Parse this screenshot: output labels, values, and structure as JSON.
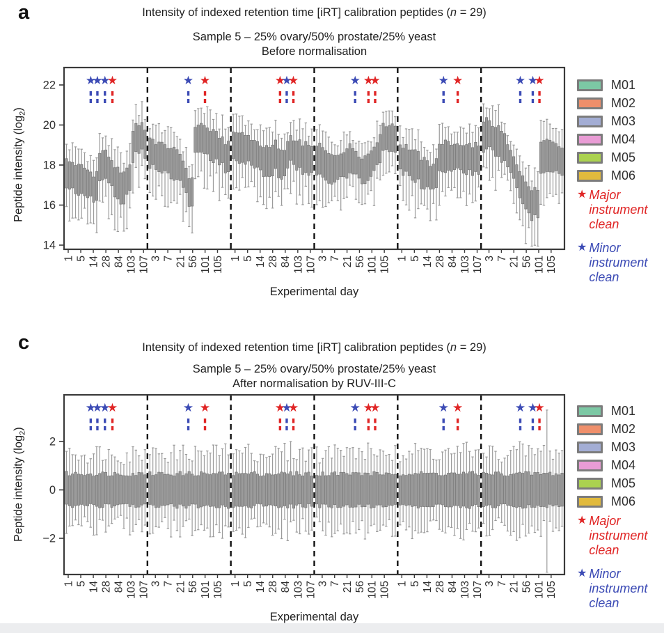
{
  "page": {
    "background": "#ffffff",
    "footer_strip_color": "#ecedef"
  },
  "colors": {
    "major_clean_red": "#e02525",
    "minor_clean_blue": "#3c4bb5",
    "box_fill": "#9b9b9b",
    "box_stroke": "#757575",
    "frame": "#3a3a3a",
    "separator": "#111111",
    "text": "#2f2f2f"
  },
  "legend": {
    "machines": [
      {
        "id": "M01",
        "color": "#7cc8a4"
      },
      {
        "id": "M02",
        "color": "#ef8f6b"
      },
      {
        "id": "M03",
        "color": "#a3add4"
      },
      {
        "id": "M04",
        "color": "#e99cd5"
      },
      {
        "id": "M05",
        "color": "#abd250"
      },
      {
        "id": "M06",
        "color": "#e1ba3d"
      }
    ],
    "major_star": "★",
    "minor_star": "★",
    "major_lines": [
      "Major",
      "instrument",
      "clean"
    ],
    "minor_lines": [
      "Minor",
      "instrument",
      "clean"
    ]
  },
  "panels": [
    {
      "letter": "a",
      "title_prefix": "Intensity of indexed retention time [iRT] calibration peptides (",
      "title_n": "n",
      "title_suffix": " = 29)",
      "subtitle": "Sample 5 – 25% ovary/50% prostate/25% yeast",
      "subtitle2": "Before normalisation",
      "ylabel_main": "Peptide intensity (log",
      "ylabel_sub": "2",
      "ylabel_end": ")",
      "xlabel": "Experimental day"
    },
    {
      "letter": "c",
      "title_prefix": "Intensity of indexed retention time [iRT] calibration peptides (",
      "title_n": "n",
      "title_suffix": " = 29)",
      "subtitle": "Sample 5 – 25% ovary/50% prostate/25% yeast",
      "subtitle2": "After normalisation by RUV-III-C",
      "ylabel_main": "Peptide intensity (log",
      "ylabel_sub": "2",
      "ylabel_end": ")",
      "xlabel": "Experimental day"
    }
  ],
  "chart_data": [
    {
      "type": "boxplot",
      "panel": "a",
      "title": "Intensity of indexed retention time [iRT] calibration peptides (n = 29)",
      "subtitle": "Sample 5 – 25% ovary/50% prostate/25% yeast",
      "condition": "Before normalisation",
      "ylabel": "Peptide intensity (log2)",
      "xlabel": "Experimental day",
      "ylim": [
        13.8,
        22.9
      ],
      "yticks": [
        {
          "label": "22",
          "value": 22
        },
        {
          "label": "20",
          "value": 20
        },
        {
          "label": "18",
          "value": 18
        },
        {
          "label": "16",
          "value": 16
        },
        {
          "label": "14",
          "value": 14
        }
      ],
      "xticks_odd_sections": [
        "1",
        "5",
        "14",
        "28",
        "84",
        "103",
        "107"
      ],
      "xticks_even_sections": [
        "3",
        "7",
        "21",
        "56",
        "101",
        "105"
      ],
      "boxes_per_section": 27,
      "iqr_halfwidth_approx": 0.6,
      "whisker_extent_approx": 1.6,
      "grid": false,
      "legend_position": "right",
      "sections": [
        {
          "machine": "M01",
          "medians": [
            17.6,
            17.5,
            17.5,
            17.4,
            17.3,
            17.3,
            17.2,
            17.1,
            17.0,
            16.9,
            17.0,
            17.9,
            18.1,
            18.0,
            17.8,
            17.6,
            17.3,
            17.1,
            16.9,
            16.9,
            17.1,
            17.5,
            19.0,
            19.3,
            19.4,
            19.4,
            19.2
          ],
          "clean_events": [
            {
              "type": "minor",
              "pos": 0.32
            },
            {
              "type": "minor",
              "pos": 0.4
            },
            {
              "type": "minor",
              "pos": 0.49
            },
            {
              "type": "major",
              "pos": 0.58
            }
          ]
        },
        {
          "machine": "M02",
          "medians": [
            18.6,
            18.6,
            18.5,
            18.5,
            18.4,
            18.3,
            18.3,
            18.2,
            18.1,
            18.0,
            17.9,
            17.6,
            17.2,
            16.8,
            16.6,
            19.3,
            19.4,
            19.4,
            19.3,
            19.2,
            19.1,
            19.0,
            18.9,
            18.8,
            18.7,
            18.5,
            18.4
          ],
          "clean_events": [
            {
              "type": "minor",
              "pos": 0.49
            },
            {
              "type": "major",
              "pos": 0.69
            }
          ]
        },
        {
          "machine": "M03",
          "medians": [
            19.0,
            19.0,
            18.9,
            18.9,
            18.8,
            18.8,
            18.7,
            18.6,
            18.5,
            18.4,
            18.3,
            18.2,
            18.2,
            18.3,
            18.5,
            18.2,
            18.0,
            18.1,
            18.6,
            18.8,
            18.7,
            18.6,
            18.5,
            18.4,
            18.4,
            18.3,
            18.2
          ],
          "clean_events": [
            {
              "type": "major",
              "pos": 0.59
            },
            {
              "type": "minor",
              "pos": 0.67
            },
            {
              "type": "major",
              "pos": 0.75
            }
          ]
        },
        {
          "machine": "M04",
          "medians": [
            18.4,
            18.3,
            18.2,
            18.0,
            17.9,
            17.8,
            17.8,
            17.9,
            18.0,
            18.1,
            18.2,
            18.3,
            18.2,
            18.1,
            17.9,
            17.8,
            17.8,
            17.9,
            18.1,
            18.3,
            18.6,
            19.0,
            19.3,
            19.4,
            19.4,
            19.4,
            19.3
          ],
          "clean_events": [
            {
              "type": "minor",
              "pos": 0.49
            },
            {
              "type": "major",
              "pos": 0.65
            },
            {
              "type": "major",
              "pos": 0.73
            }
          ]
        },
        {
          "machine": "M05",
          "medians": [
            18.4,
            18.3,
            18.3,
            18.2,
            18.1,
            18.0,
            17.9,
            17.7,
            17.6,
            17.5,
            17.4,
            17.5,
            17.7,
            18.3,
            18.5,
            18.5,
            18.4,
            18.4,
            18.4,
            18.5,
            18.4,
            18.4,
            18.3,
            18.4,
            18.3,
            18.4,
            18.3
          ],
          "clean_events": [
            {
              "type": "minor",
              "pos": 0.55
            },
            {
              "type": "major",
              "pos": 0.72
            }
          ]
        },
        {
          "machine": "M06",
          "medians": [
            19.5,
            19.6,
            19.5,
            19.4,
            19.3,
            19.2,
            19.0,
            18.8,
            18.5,
            18.2,
            17.9,
            17.5,
            17.1,
            16.8,
            16.5,
            16.3,
            16.1,
            16.1,
            16.2,
            18.4,
            18.5,
            18.5,
            18.5,
            18.4,
            18.4,
            18.3,
            18.2
          ],
          "clean_events": [
            {
              "type": "minor",
              "pos": 0.47
            },
            {
              "type": "minor",
              "pos": 0.62
            },
            {
              "type": "major",
              "pos": 0.7
            }
          ]
        }
      ]
    },
    {
      "type": "boxplot",
      "panel": "c",
      "title": "Intensity of indexed retention time [iRT] calibration peptides (n = 29)",
      "subtitle": "Sample 5 – 25% ovary/50% prostate/25% yeast",
      "condition": "After normalisation by RUV-III-C",
      "ylabel": "Peptide intensity (log2)",
      "xlabel": "Experimental day",
      "ylim": [
        -3.5,
        3.9
      ],
      "yticks": [
        {
          "label": "2",
          "value": 2
        },
        {
          "label": "0",
          "value": 0
        },
        {
          "label": "−2",
          "value": -2
        }
      ],
      "xticks_odd_sections": [
        "1",
        "5",
        "14",
        "28",
        "84",
        "103",
        "107"
      ],
      "xticks_even_sections": [
        "3",
        "7",
        "21",
        "56",
        "101",
        "105"
      ],
      "boxes_per_section": 27,
      "uniform_stats": {
        "median": 0,
        "q1": -0.65,
        "q3": 0.65,
        "whisker_low": -2.0,
        "whisker_high": 1.95
      },
      "outlier": {
        "machine": "M06",
        "box_index": 21,
        "whisker_high": 3.3,
        "whisker_low": -3.4
      },
      "grid": false,
      "legend_position": "right",
      "sections": [
        {
          "machine": "M01",
          "clean_events": [
            {
              "type": "minor",
              "pos": 0.32
            },
            {
              "type": "minor",
              "pos": 0.4
            },
            {
              "type": "minor",
              "pos": 0.49
            },
            {
              "type": "major",
              "pos": 0.58
            }
          ]
        },
        {
          "machine": "M02",
          "clean_events": [
            {
              "type": "minor",
              "pos": 0.49
            },
            {
              "type": "major",
              "pos": 0.69
            }
          ]
        },
        {
          "machine": "M03",
          "clean_events": [
            {
              "type": "major",
              "pos": 0.59
            },
            {
              "type": "minor",
              "pos": 0.67
            },
            {
              "type": "major",
              "pos": 0.75
            }
          ]
        },
        {
          "machine": "M04",
          "clean_events": [
            {
              "type": "minor",
              "pos": 0.49
            },
            {
              "type": "major",
              "pos": 0.65
            },
            {
              "type": "major",
              "pos": 0.73
            }
          ]
        },
        {
          "machine": "M05",
          "clean_events": [
            {
              "type": "minor",
              "pos": 0.55
            },
            {
              "type": "major",
              "pos": 0.72
            }
          ]
        },
        {
          "machine": "M06",
          "clean_events": [
            {
              "type": "minor",
              "pos": 0.47
            },
            {
              "type": "minor",
              "pos": 0.62
            },
            {
              "type": "major",
              "pos": 0.7
            }
          ]
        }
      ]
    }
  ]
}
